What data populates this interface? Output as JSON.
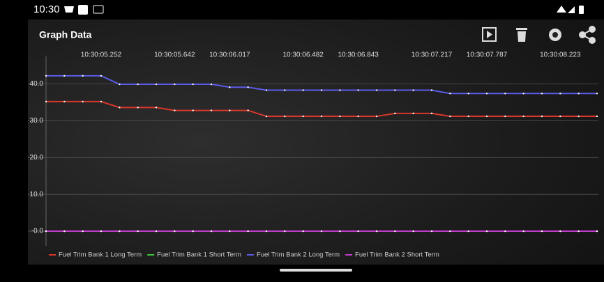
{
  "status_bar": {
    "time": "10:30"
  },
  "app_bar": {
    "title": "Graph Data"
  },
  "chart_data": {
    "type": "line",
    "categories": [
      null,
      null,
      null,
      "10:30:05.252",
      null,
      null,
      null,
      "10:30:05.642",
      null,
      null,
      "10:30:06.017",
      null,
      null,
      null,
      "10:30:06.482",
      null,
      null,
      "10:30:06.843",
      null,
      null,
      null,
      "10:30:07.217",
      null,
      null,
      "10:30:07.787",
      null,
      null,
      null,
      "10:30:08.223",
      null,
      null
    ],
    "ylim": [
      -4,
      46
    ],
    "yticks": [
      {
        "value": 0,
        "label": "-0.0"
      },
      {
        "value": 10,
        "label": "10.0"
      },
      {
        "value": 20,
        "label": "20.0"
      },
      {
        "value": 30,
        "label": "30.0"
      },
      {
        "value": 40,
        "label": "40.0"
      }
    ],
    "grid": true,
    "legend": "bottom",
    "series": [
      {
        "name": "Fuel Trim Bank 1 Long Term",
        "color": "#d9372b",
        "values": [
          35.2,
          35.2,
          35.2,
          35.2,
          33.6,
          33.6,
          33.6,
          32.8,
          32.8,
          32.8,
          32.8,
          32.8,
          31.2,
          31.2,
          31.2,
          31.2,
          31.2,
          31.2,
          31.2,
          32.0,
          32.0,
          32.0,
          31.2,
          31.2,
          31.2,
          31.2,
          31.2,
          31.2,
          31.2,
          31.2,
          31.2
        ]
      },
      {
        "name": "Fuel Trim Bank 1 Short Term",
        "color": "#3ec43e",
        "values": [
          0,
          0,
          0,
          0,
          0,
          0,
          0,
          0,
          0,
          0,
          0,
          0,
          0,
          0,
          0,
          0,
          0,
          0,
          0,
          0,
          0,
          0,
          0,
          0,
          0,
          0,
          0,
          0,
          0,
          0,
          0
        ]
      },
      {
        "name": "Fuel Trim Bank 2 Long Term",
        "color": "#5b5be8",
        "values": [
          42.2,
          42.2,
          42.2,
          42.2,
          39.9,
          39.9,
          39.9,
          39.9,
          39.9,
          39.9,
          39.1,
          39.1,
          38.3,
          38.3,
          38.3,
          38.3,
          38.3,
          38.3,
          38.3,
          38.3,
          38.3,
          38.3,
          37.4,
          37.4,
          37.4,
          37.4,
          37.4,
          37.4,
          37.4,
          37.4,
          37.4
        ]
      },
      {
        "name": "Fuel Trim Bank 2 Short Term",
        "color": "#c23ccc",
        "values": [
          0,
          0,
          0,
          0,
          0,
          0,
          0,
          0,
          0,
          0,
          0,
          0,
          0,
          0,
          0,
          0,
          0,
          0,
          0,
          0,
          0,
          0,
          0,
          0,
          0,
          0,
          0,
          0,
          0,
          0,
          0
        ]
      }
    ]
  }
}
